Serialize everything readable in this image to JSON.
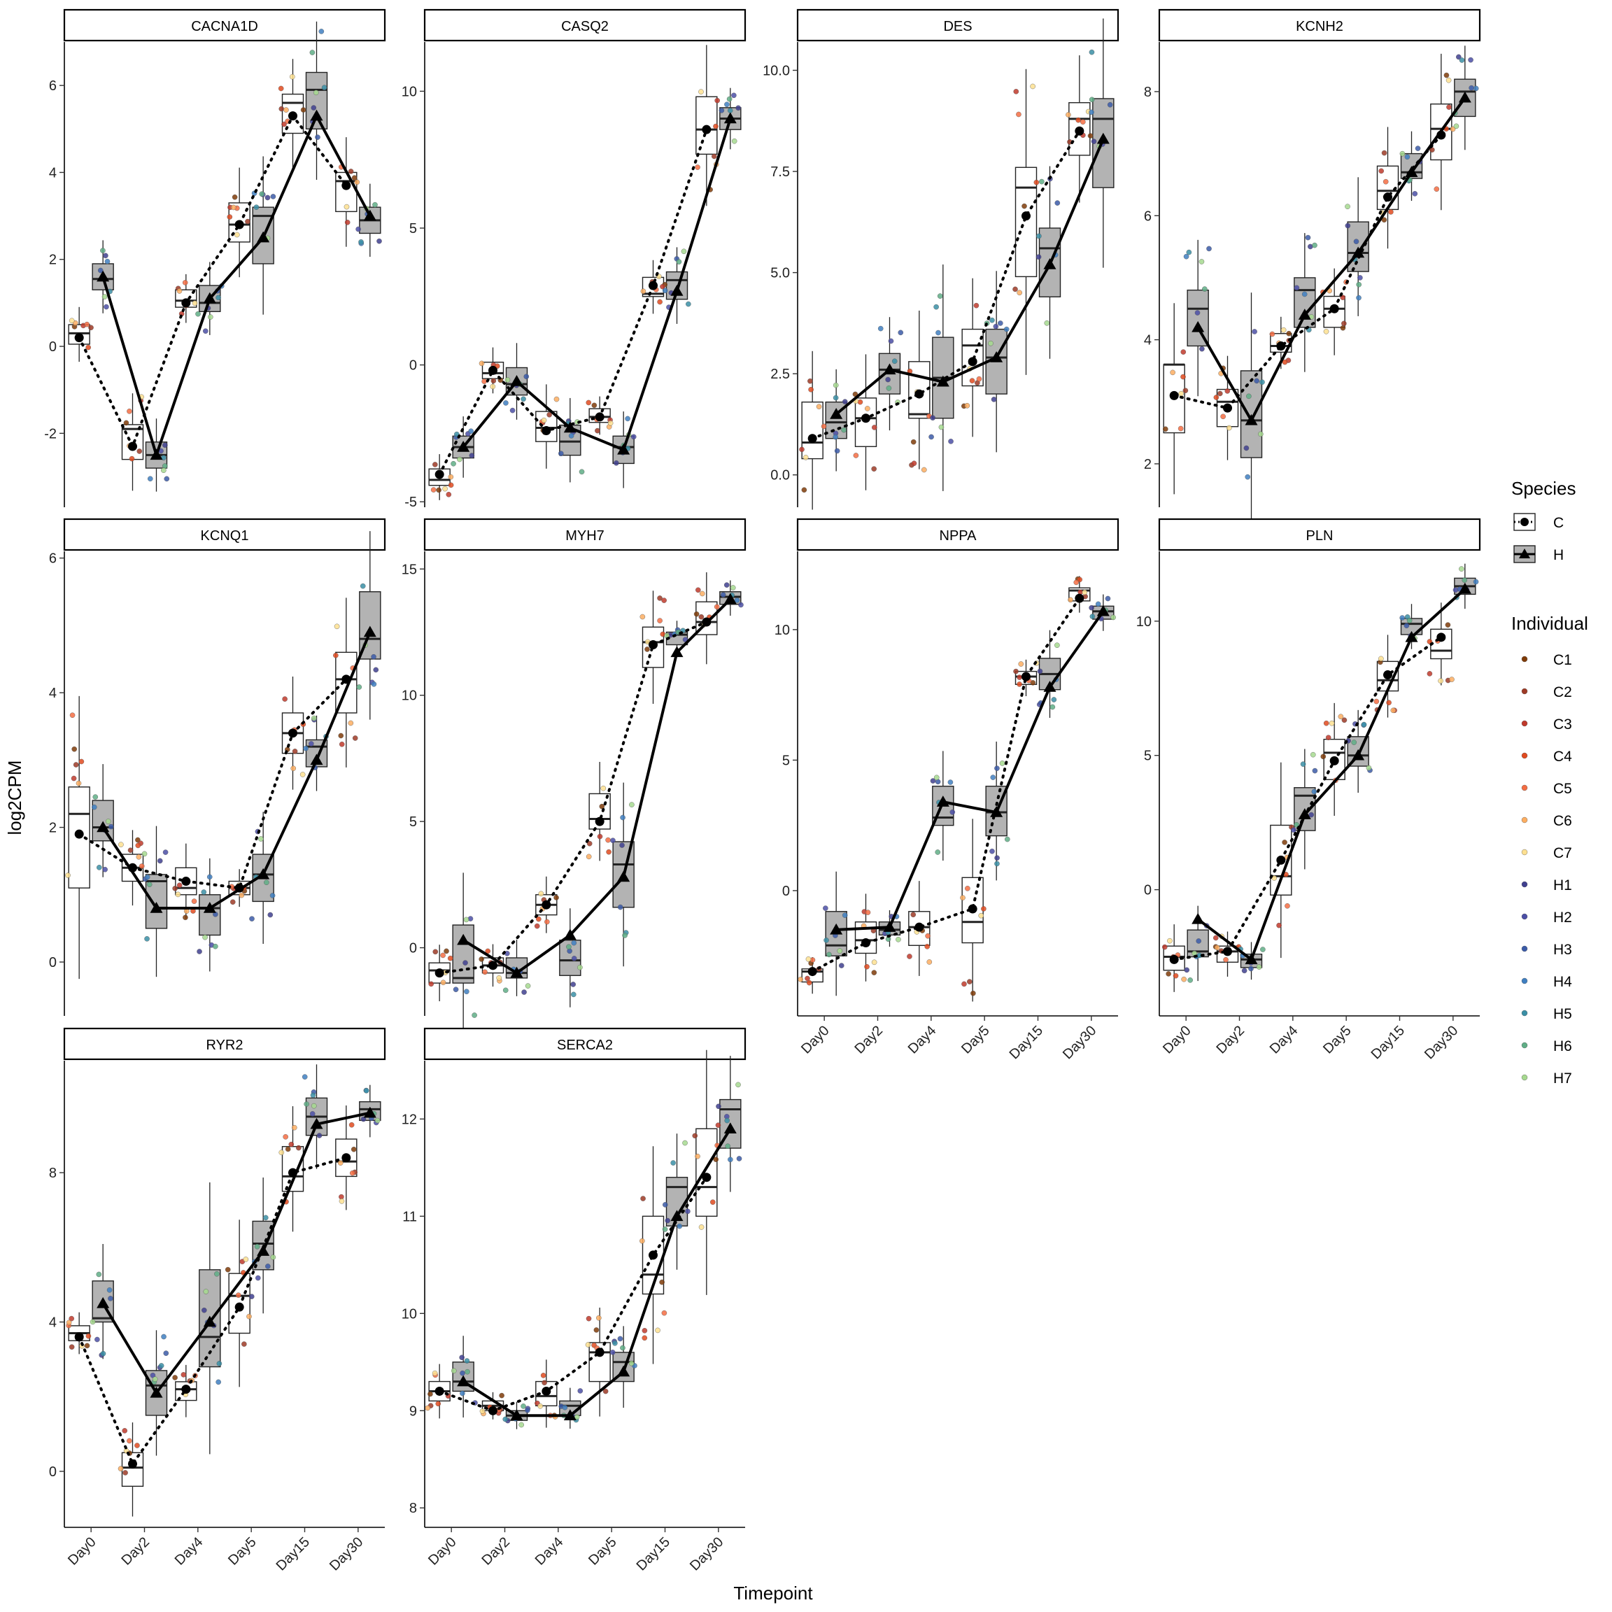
{
  "chart_data": {
    "type": "boxplot-facets",
    "xlabel": "Timepoint",
    "ylabel": "log2CPM",
    "timepoints": [
      "Day0",
      "Day2",
      "Day4",
      "Day5",
      "Day15",
      "Day30"
    ],
    "species_legend": {
      "title": "Species",
      "entries": [
        {
          "name": "C",
          "fill": "#ffffff",
          "marker": "circle",
          "line": "dotted"
        },
        {
          "name": "H",
          "fill": "#b3b3b3",
          "marker": "triangle",
          "line": "solid"
        }
      ]
    },
    "individual_legend": {
      "title": "Individual",
      "entries": [
        {
          "name": "C1",
          "color": "#7f3b08"
        },
        {
          "name": "C2",
          "color": "#9e3a26"
        },
        {
          "name": "C3",
          "color": "#c0392b"
        },
        {
          "name": "C4",
          "color": "#e04a1f"
        },
        {
          "name": "C5",
          "color": "#f46d43"
        },
        {
          "name": "C6",
          "color": "#fdae61"
        },
        {
          "name": "C7",
          "color": "#fee090"
        },
        {
          "name": "H1",
          "color": "#3f3f8f"
        },
        {
          "name": "H2",
          "color": "#4b4fa6"
        },
        {
          "name": "H3",
          "color": "#3b5ba8"
        },
        {
          "name": "H4",
          "color": "#3f7fc1"
        },
        {
          "name": "H5",
          "color": "#3a8fa6"
        },
        {
          "name": "H6",
          "color": "#5fae86"
        },
        {
          "name": "H7",
          "color": "#a6d98f"
        }
      ]
    },
    "panels": [
      {
        "gene": "CACNA1D",
        "ylim": [
          -3.7,
          7.0
        ],
        "yticks": [
          -2,
          0,
          2,
          4,
          6
        ],
        "xticks": false,
        "C": [
          0.2,
          -2.3,
          1.0,
          2.8,
          5.3,
          3.7
        ],
        "H": [
          1.6,
          -2.5,
          1.1,
          2.5,
          5.3,
          3.0
        ],
        "Cbox": [
          [
            0.05,
            0.3,
            0.5
          ],
          [
            -2.6,
            -1.9,
            -1.8
          ],
          [
            0.9,
            1.05,
            1.3
          ],
          [
            2.4,
            2.8,
            3.3
          ],
          [
            4.9,
            5.6,
            5.8
          ],
          [
            3.1,
            3.8,
            4.0
          ]
        ],
        "Hbox": [
          [
            1.3,
            1.55,
            1.9
          ],
          [
            -2.8,
            -2.5,
            -2.2
          ],
          [
            0.8,
            1.0,
            1.4
          ],
          [
            1.9,
            3.0,
            3.2
          ],
          [
            5.0,
            5.9,
            6.3
          ],
          [
            2.6,
            2.9,
            3.2
          ]
        ]
      },
      {
        "gene": "CASQ2",
        "ylim": [
          -5.2,
          11.8
        ],
        "yticks": [
          -5,
          0,
          5,
          10
        ],
        "xticks": false,
        "C": [
          -4.0,
          -0.2,
          -2.4,
          -1.9,
          2.9,
          8.6
        ],
        "H": [
          -3.0,
          -0.6,
          -2.3,
          -3.1,
          2.7,
          9.0
        ],
        "Cbox": [
          [
            -4.4,
            -4.2,
            -3.8
          ],
          [
            -0.5,
            -0.3,
            0.1
          ],
          [
            -2.8,
            -2.3,
            -1.7
          ],
          [
            -2.1,
            -1.9,
            -1.6
          ],
          [
            2.5,
            2.6,
            3.2
          ],
          [
            7.7,
            8.6,
            9.8
          ]
        ],
        "Hbox": [
          [
            -3.4,
            -3.0,
            -2.6
          ],
          [
            -1.1,
            -0.7,
            -0.1
          ],
          [
            -3.3,
            -2.8,
            -2.2
          ],
          [
            -3.6,
            -3.0,
            -2.6
          ],
          [
            2.4,
            3.1,
            3.4
          ],
          [
            8.6,
            9.0,
            9.4
          ]
        ]
      },
      {
        "gene": "DES",
        "ylim": [
          -0.8,
          10.7
        ],
        "yticks": [
          0.0,
          2.5,
          5.0,
          7.5,
          10.0
        ],
        "yfmt": 1,
        "xticks": false,
        "C": [
          0.9,
          1.4,
          2.0,
          2.8,
          6.4,
          8.5
        ],
        "H": [
          1.5,
          2.6,
          2.3,
          2.9,
          5.2,
          8.3
        ],
        "Cbox": [
          [
            0.4,
            0.8,
            1.8
          ],
          [
            0.7,
            1.4,
            1.9
          ],
          [
            1.4,
            1.5,
            2.8
          ],
          [
            2.2,
            3.2,
            3.6
          ],
          [
            4.9,
            7.1,
            7.6
          ],
          [
            7.9,
            8.8,
            9.2
          ]
        ],
        "Hbox": [
          [
            0.9,
            1.3,
            1.8
          ],
          [
            2.0,
            2.6,
            3.0
          ],
          [
            1.4,
            2.4,
            3.4
          ],
          [
            2.0,
            2.9,
            3.6
          ],
          [
            4.4,
            5.6,
            6.1
          ],
          [
            7.1,
            8.8,
            9.3
          ]
        ]
      },
      {
        "gene": "KCNH2",
        "ylim": [
          1.3,
          8.8
        ],
        "yticks": [
          2,
          4,
          6,
          8
        ],
        "xticks": false,
        "C": [
          3.1,
          2.9,
          3.9,
          4.5,
          6.3,
          7.3
        ],
        "H": [
          4.2,
          2.7,
          4.4,
          5.4,
          6.7,
          7.9
        ],
        "Cbox": [
          [
            2.5,
            3.6,
            3.6
          ],
          [
            2.6,
            3.0,
            3.2
          ],
          [
            3.8,
            3.9,
            4.1
          ],
          [
            4.2,
            4.5,
            4.7
          ],
          [
            6.1,
            6.4,
            6.8
          ],
          [
            6.9,
            7.4,
            7.8
          ]
        ],
        "Hbox": [
          [
            3.9,
            4.5,
            4.8
          ],
          [
            2.1,
            2.7,
            3.5
          ],
          [
            4.2,
            4.8,
            5.0
          ],
          [
            5.1,
            5.4,
            5.9
          ],
          [
            6.6,
            6.7,
            7.0
          ],
          [
            7.6,
            8.0,
            8.2
          ]
        ]
      },
      {
        "gene": "KCNQ1",
        "ylim": [
          -0.8,
          6.1
        ],
        "yticks": [
          0,
          2,
          4,
          6
        ],
        "xticks": false,
        "C": [
          1.9,
          1.4,
          1.2,
          1.1,
          3.4,
          4.2
        ],
        "H": [
          2.0,
          0.8,
          0.8,
          1.3,
          3.0,
          4.9
        ],
        "Cbox": [
          [
            1.1,
            2.2,
            2.6
          ],
          [
            1.2,
            1.4,
            1.6
          ],
          [
            1.0,
            1.1,
            1.4
          ],
          [
            1.0,
            1.1,
            1.2
          ],
          [
            3.1,
            3.4,
            3.7
          ],
          [
            3.7,
            4.2,
            4.6
          ]
        ],
        "Hbox": [
          [
            1.8,
            2.0,
            2.4
          ],
          [
            0.5,
            1.2,
            1.3
          ],
          [
            0.4,
            0.8,
            1.0
          ],
          [
            0.9,
            1.3,
            1.6
          ],
          [
            2.9,
            3.2,
            3.3
          ],
          [
            4.5,
            4.8,
            5.5
          ]
        ]
      },
      {
        "gene": "MYH7",
        "ylim": [
          -2.7,
          15.7
        ],
        "yticks": [
          0,
          5,
          10,
          15
        ],
        "xticks": false,
        "C": [
          -1.0,
          -0.7,
          1.7,
          5.0,
          12.0,
          12.9
        ],
        "H": [
          0.3,
          -1.0,
          0.5,
          2.8,
          11.7,
          13.8
        ],
        "Cbox": [
          [
            -1.4,
            -0.9,
            -0.6
          ],
          [
            -1.0,
            -0.7,
            -0.4
          ],
          [
            1.3,
            1.7,
            2.1
          ],
          [
            4.7,
            5.1,
            6.1
          ],
          [
            11.1,
            12.1,
            12.7
          ],
          [
            12.4,
            12.9,
            13.7
          ]
        ],
        "Hbox": [
          [
            -1.4,
            -1.2,
            0.9
          ],
          [
            -1.2,
            -1.0,
            -0.4
          ],
          [
            -1.1,
            -0.5,
            0.3
          ],
          [
            1.6,
            3.3,
            4.2
          ],
          [
            12.0,
            12.4,
            12.5
          ],
          [
            13.6,
            13.9,
            14.1
          ]
        ]
      },
      {
        "gene": "NPPA",
        "ylim": [
          -4.8,
          13.0
        ],
        "yticks": [
          0,
          5,
          10
        ],
        "xticks": true,
        "C": [
          -3.1,
          -2.0,
          -1.4,
          -0.7,
          8.2,
          11.2
        ],
        "H": [
          -1.5,
          -1.4,
          3.4,
          3.0,
          7.8,
          10.7
        ],
        "Cbox": [
          [
            -3.5,
            -3.1,
            -3.0
          ],
          [
            -2.4,
            -1.9,
            -1.2
          ],
          [
            -2.1,
            -1.4,
            -0.8
          ],
          [
            -2.0,
            -1.2,
            0.5
          ],
          [
            7.9,
            8.2,
            8.4
          ],
          [
            11.1,
            11.5,
            11.6
          ]
        ],
        "Hbox": [
          [
            -2.5,
            -2.1,
            -0.8
          ],
          [
            -1.7,
            -1.5,
            -1.2
          ],
          [
            2.5,
            2.8,
            4.0
          ],
          [
            2.1,
            3.0,
            4.0
          ],
          [
            7.7,
            8.3,
            8.9
          ],
          [
            10.4,
            10.7,
            10.9
          ]
        ]
      },
      {
        "gene": "PLN",
        "ylim": [
          -4.7,
          12.6
        ],
        "yticks": [
          0,
          5,
          10
        ],
        "xticks": true,
        "C": [
          -2.6,
          -2.3,
          1.1,
          4.8,
          8.0,
          9.4
        ],
        "H": [
          -1.1,
          -2.6,
          2.8,
          5.0,
          9.4,
          11.2
        ],
        "Cbox": [
          [
            -3.0,
            -2.5,
            -2.1
          ],
          [
            -2.7,
            -2.3,
            -2.1
          ],
          [
            -0.2,
            0.5,
            2.4
          ],
          [
            4.1,
            5.1,
            5.6
          ],
          [
            7.4,
            7.8,
            8.5
          ],
          [
            8.6,
            8.9,
            9.7
          ]
        ],
        "Hbox": [
          [
            -2.5,
            -2.3,
            -1.5
          ],
          [
            -2.9,
            -2.6,
            -2.4
          ],
          [
            2.2,
            3.5,
            3.8
          ],
          [
            4.6,
            5.0,
            5.7
          ],
          [
            9.5,
            9.9,
            10.1
          ],
          [
            11.0,
            11.3,
            11.6
          ]
        ]
      },
      {
        "gene": "RYR2",
        "ylim": [
          -1.5,
          11.0
        ],
        "yticks": [
          0,
          4,
          8
        ],
        "xticks": true,
        "C": [
          3.6,
          0.2,
          2.2,
          4.4,
          8.0,
          8.4
        ],
        "H": [
          4.5,
          2.1,
          4.0,
          5.9,
          9.3,
          9.6
        ],
        "Cbox": [
          [
            3.5,
            3.7,
            3.9
          ],
          [
            -0.4,
            0.1,
            0.5
          ],
          [
            1.9,
            2.2,
            2.4
          ],
          [
            3.7,
            4.7,
            5.3
          ],
          [
            7.5,
            7.9,
            8.7
          ],
          [
            7.9,
            8.3,
            8.9
          ]
        ],
        "Hbox": [
          [
            4.0,
            4.1,
            5.1
          ],
          [
            1.5,
            2.3,
            2.7
          ],
          [
            2.8,
            3.6,
            5.4
          ],
          [
            5.4,
            6.1,
            6.7
          ],
          [
            9.0,
            9.5,
            10.0
          ],
          [
            9.4,
            9.7,
            9.9
          ]
        ]
      },
      {
        "gene": "SERCA2",
        "ylim": [
          7.8,
          12.6
        ],
        "yticks": [
          8,
          9,
          10,
          11,
          12
        ],
        "xticks": true,
        "C": [
          9.2,
          9.0,
          9.2,
          9.6,
          10.6,
          11.4
        ],
        "H": [
          9.3,
          8.95,
          8.95,
          9.4,
          11.0,
          11.9
        ],
        "Cbox": [
          [
            9.1,
            9.2,
            9.3
          ],
          [
            9.0,
            9.05,
            9.1
          ],
          [
            9.05,
            9.15,
            9.3
          ],
          [
            9.3,
            9.6,
            9.7
          ],
          [
            10.2,
            10.4,
            11.0
          ],
          [
            11.0,
            11.3,
            11.9
          ]
        ],
        "Hbox": [
          [
            9.2,
            9.3,
            9.5
          ],
          [
            8.9,
            8.95,
            9.0
          ],
          [
            8.95,
            9.05,
            9.1
          ],
          [
            9.3,
            9.5,
            9.6
          ],
          [
            10.9,
            11.3,
            11.4
          ],
          [
            11.7,
            12.1,
            12.2
          ]
        ]
      }
    ]
  }
}
